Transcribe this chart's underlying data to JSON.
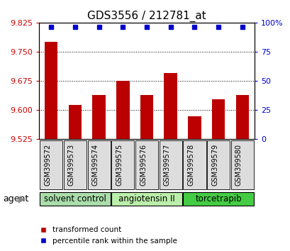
{
  "title": "GDS3556 / 212781_at",
  "categories": [
    "GSM399572",
    "GSM399573",
    "GSM399574",
    "GSM399575",
    "GSM399576",
    "GSM399577",
    "GSM399578",
    "GSM399579",
    "GSM399580"
  ],
  "bar_values": [
    9.775,
    9.613,
    9.638,
    9.675,
    9.638,
    9.695,
    9.585,
    9.628,
    9.638
  ],
  "percentile_values": [
    96,
    96,
    96,
    96,
    96,
    96,
    96,
    96,
    96
  ],
  "ylim_left": [
    9.525,
    9.825
  ],
  "ylim_right": [
    0,
    100
  ],
  "yticks_left": [
    9.525,
    9.6,
    9.675,
    9.75,
    9.825
  ],
  "yticks_right": [
    0,
    25,
    50,
    75,
    100
  ],
  "bar_color": "#bb0000",
  "dot_color": "#0000cc",
  "groups": [
    {
      "label": "solvent control",
      "start": 0,
      "end": 3,
      "color": "#aaddaa"
    },
    {
      "label": "angiotensin II",
      "start": 3,
      "end": 6,
      "color": "#bbeeaa"
    },
    {
      "label": "torcetrapib",
      "start": 6,
      "end": 9,
      "color": "#44cc44"
    }
  ],
  "legend_bar_label": "transformed count",
  "legend_dot_label": "percentile rank within the sample",
  "agent_label": "agent",
  "background_color": "#ffffff",
  "plot_bg_color": "#ffffff",
  "xticklabel_bg": "#dddddd",
  "tick_label_color_left": "#cc0000",
  "tick_label_color_right": "#0000cc"
}
